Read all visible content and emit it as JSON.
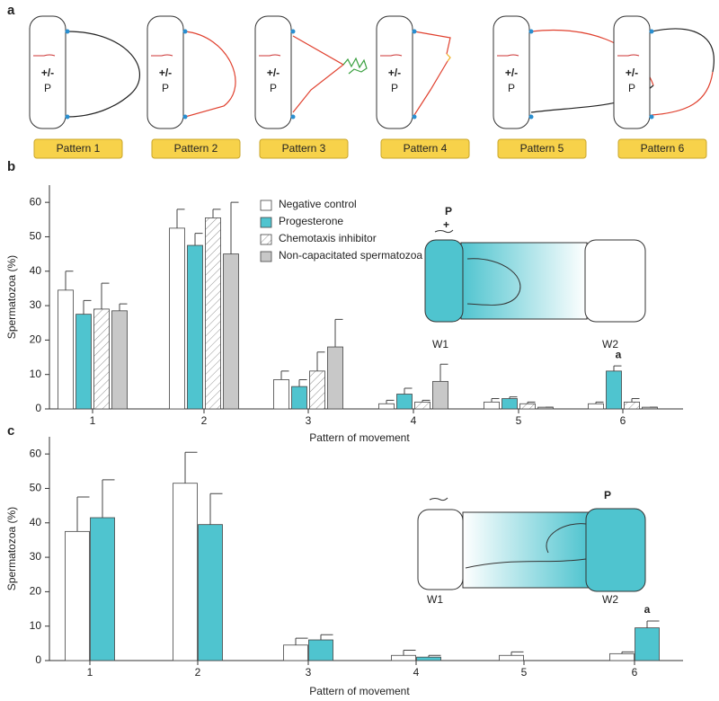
{
  "panel_labels": [
    "a",
    "b",
    "c"
  ],
  "patterns": {
    "cell_top": "+/-",
    "cell_bottom": "P",
    "labels": [
      "Pattern 1",
      "Pattern 2",
      "Pattern 3",
      "Pattern 4",
      "Pattern 5",
      "Pattern 6"
    ]
  },
  "chart_data": [
    {
      "type": "bar",
      "ylabel": "Spermatozoa (%)",
      "xlabel": "Pattern of movement",
      "categories": [
        "1",
        "2",
        "3",
        "4",
        "5",
        "6"
      ],
      "ylim": [
        0,
        65
      ],
      "yticks": [
        0,
        10,
        20,
        30,
        40,
        50,
        60
      ],
      "series": [
        {
          "name": "Negative control",
          "color": "#ffffff",
          "values": [
            34.5,
            52.5,
            8.5,
            1.5,
            2,
            1.5
          ],
          "errors": [
            5.5,
            5.5,
            2.5,
            1,
            1,
            0.5
          ]
        },
        {
          "name": "Progesterone",
          "color": "#4fc4cf",
          "values": [
            27.5,
            47.5,
            6.5,
            4.3,
            3,
            11
          ],
          "errors": [
            4,
            3.5,
            2,
            1.7,
            0.5,
            1.5
          ]
        },
        {
          "name": "Chemotaxis inhibitor",
          "color": "#ffffff",
          "pattern": "hatch",
          "values": [
            29,
            55.5,
            11,
            2,
            1.5,
            2
          ],
          "errors": [
            7.5,
            2.5,
            5.5,
            0.5,
            0.5,
            1
          ]
        },
        {
          "name": "Non-capacitated spermatozoa",
          "color": "#c8c8c8",
          "values": [
            28.5,
            45,
            18,
            8,
            0.5,
            0.5
          ],
          "errors": [
            2,
            15,
            8,
            5,
            0,
            0
          ]
        }
      ],
      "annotations": [
        {
          "text": "a",
          "x": "6"
        }
      ],
      "inset_labels": [
        "P",
        "+",
        "W1",
        "W2"
      ]
    },
    {
      "type": "bar",
      "ylabel": "Spermatozoa (%)",
      "xlabel": "Pattern of movement",
      "categories": [
        "1",
        "2",
        "3",
        "4",
        "5",
        "6"
      ],
      "ylim": [
        0,
        65
      ],
      "yticks": [
        0,
        10,
        20,
        30,
        40,
        50,
        60
      ],
      "series": [
        {
          "color": "#ffffff",
          "values": [
            37.5,
            51.5,
            4.5,
            1.5,
            1.5,
            2
          ],
          "errors": [
            10,
            9,
            2,
            1.5,
            1,
            0.5
          ]
        },
        {
          "color": "#4fc4cf",
          "values": [
            41.5,
            39.5,
            6,
            1,
            null,
            9.5
          ],
          "errors": [
            11,
            9,
            1.5,
            0.5,
            null,
            2
          ]
        }
      ],
      "annotations": [
        {
          "text": "a",
          "x": "6"
        }
      ],
      "inset_labels": [
        "P",
        "W1",
        "W2"
      ]
    }
  ]
}
